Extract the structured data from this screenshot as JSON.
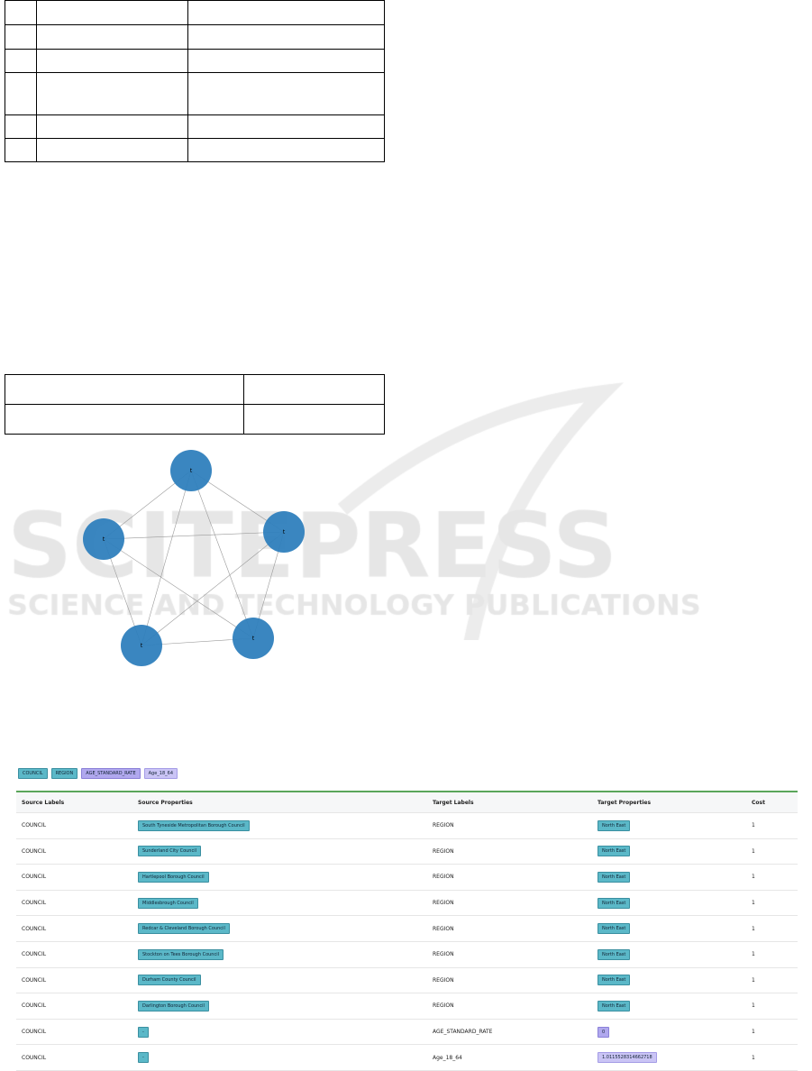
{
  "table1": {
    "rows": 6
  },
  "table2": {
    "rows": 2
  },
  "watermark": {
    "logo": "SCITEPRESS",
    "tagline": "SCIENCE AND TECHNOLOGY PUBLICATIONS"
  },
  "graph": {
    "nodes": [
      "t",
      "t",
      "t",
      "t",
      "t"
    ],
    "node_color": "#2f80bd",
    "edges": "complete"
  },
  "ui": {
    "badges": [
      {
        "label": "COUNCIL",
        "kind": "node"
      },
      {
        "label": "REGION",
        "kind": "node"
      },
      {
        "label": "AGE_STANDARD_RATE",
        "kind": "prop"
      },
      {
        "label": "Age_18_64",
        "kind": "prop-light"
      }
    ],
    "headers": [
      "Source Labels",
      "Source Properties",
      "Target Labels",
      "Target Properties",
      "Cost"
    ],
    "rows": [
      [
        "COUNCIL",
        "South Tyneside Metropolitan Borough Council",
        "REGION",
        "North East",
        "1"
      ],
      [
        "COUNCIL",
        "Sunderland City Council",
        "REGION",
        "North East",
        "1"
      ],
      [
        "COUNCIL",
        "Hartlepool Borough Council",
        "REGION",
        "North East",
        "1"
      ],
      [
        "COUNCIL",
        "Middlesbrough Council",
        "REGION",
        "North East",
        "1"
      ],
      [
        "COUNCIL",
        "Redcar & Cleveland Borough Council",
        "REGION",
        "North East",
        "1"
      ],
      [
        "COUNCIL",
        "Stockton on Tees Borough Council",
        "REGION",
        "North East",
        "1"
      ],
      [
        "COUNCIL",
        "Durham County Council",
        "REGION",
        "North East",
        "1"
      ],
      [
        "COUNCIL",
        "Darlington Borough Council",
        "REGION",
        "North East",
        "1"
      ],
      [
        "COUNCIL",
        "-",
        "AGE_STANDARD_RATE",
        "0",
        "1"
      ],
      [
        "COUNCIL",
        "-",
        "Age_18_64",
        "1.0115528314662718",
        "1"
      ]
    ]
  }
}
